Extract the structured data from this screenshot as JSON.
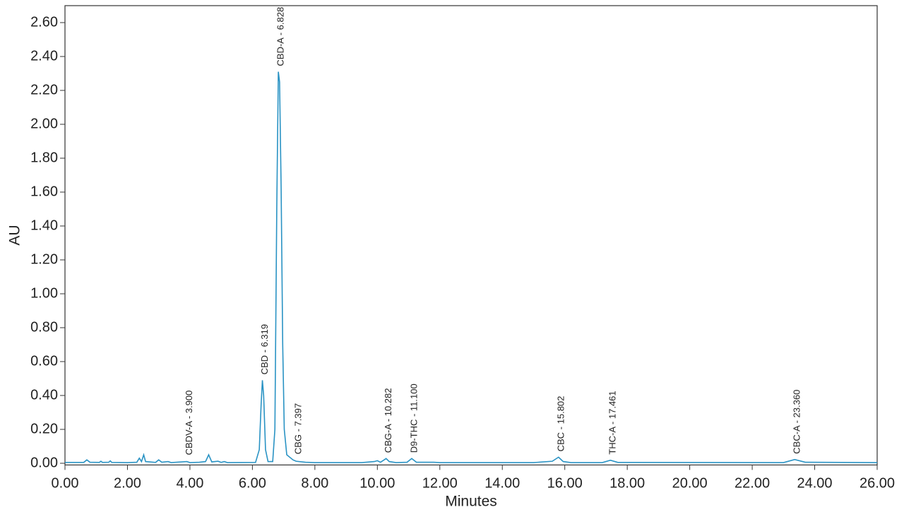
{
  "chart_data": {
    "type": "line",
    "xlabel": "Minutes",
    "ylabel": "AU",
    "color": "#2a93c4",
    "xlim": [
      0,
      26
    ],
    "ylim": [
      -0.01,
      2.7
    ],
    "xticks": [
      {
        "value": 0,
        "label": "0.00"
      },
      {
        "value": 2,
        "label": "2.00"
      },
      {
        "value": 4,
        "label": "4.00"
      },
      {
        "value": 6,
        "label": "6.00"
      },
      {
        "value": 8,
        "label": "8.00"
      },
      {
        "value": 10,
        "label": "10.00"
      },
      {
        "value": 12,
        "label": "12.00"
      },
      {
        "value": 14,
        "label": "14.00"
      },
      {
        "value": 16,
        "label": "16.00"
      },
      {
        "value": 18,
        "label": "18.00"
      },
      {
        "value": 20,
        "label": "20.00"
      },
      {
        "value": 22,
        "label": "22.00"
      },
      {
        "value": 24,
        "label": "24.00"
      },
      {
        "value": 26,
        "label": "26.00"
      }
    ],
    "yticks": [
      {
        "value": 0,
        "label": "0.00"
      },
      {
        "value": 0.2,
        "label": "0.20"
      },
      {
        "value": 0.4,
        "label": "0.40"
      },
      {
        "value": 0.6,
        "label": "0.60"
      },
      {
        "value": 0.8,
        "label": "0.80"
      },
      {
        "value": 1,
        "label": "1.00"
      },
      {
        "value": 1.2,
        "label": "1.20"
      },
      {
        "value": 1.4,
        "label": "1.40"
      },
      {
        "value": 1.6,
        "label": "1.60"
      },
      {
        "value": 1.8,
        "label": "1.80"
      },
      {
        "value": 2,
        "label": "2.00"
      },
      {
        "value": 2.2,
        "label": "2.20"
      },
      {
        "value": 2.4,
        "label": "2.40"
      },
      {
        "value": 2.6,
        "label": "2.60"
      }
    ],
    "x": [
      0,
      0.6,
      0.7,
      0.8,
      1.1,
      1.15,
      1.2,
      1.4,
      1.45,
      1.5,
      2.0,
      2.3,
      2.38,
      2.45,
      2.52,
      2.58,
      2.9,
      3.0,
      3.1,
      3.3,
      3.4,
      3.9,
      4.0,
      4.3,
      4.5,
      4.6,
      4.7,
      4.9,
      5.0,
      5.1,
      5.2,
      6.1,
      6.22,
      6.28,
      6.32,
      6.36,
      6.42,
      6.5,
      6.65,
      6.72,
      6.78,
      6.83,
      6.87,
      6.92,
      6.97,
      7.02,
      7.1,
      7.3,
      7.4,
      7.7,
      8.0,
      9.5,
      9.9,
      10.0,
      10.1,
      10.2,
      10.28,
      10.38,
      10.6,
      10.95,
      11.1,
      11.25,
      11.8,
      12,
      15.0,
      15.6,
      15.8,
      15.95,
      16.2,
      17.2,
      17.46,
      17.7,
      23.0,
      23.36,
      23.7,
      26
    ],
    "values": [
      0.005,
      0.005,
      0.02,
      0.006,
      0.005,
      0.012,
      0.005,
      0.006,
      0.014,
      0.005,
      0.004,
      0.006,
      0.03,
      0.01,
      0.05,
      0.01,
      0.005,
      0.02,
      0.006,
      0.01,
      0.004,
      0.01,
      0.004,
      0.006,
      0.01,
      0.05,
      0.008,
      0.012,
      0.005,
      0.01,
      0.004,
      0.005,
      0.08,
      0.35,
      0.49,
      0.4,
      0.08,
      0.01,
      0.01,
      0.2,
      1.5,
      2.31,
      2.25,
      1.62,
      0.7,
      0.2,
      0.05,
      0.02,
      0.012,
      0.006,
      0.004,
      0.004,
      0.01,
      0.015,
      0.006,
      0.018,
      0.028,
      0.01,
      0.004,
      0.006,
      0.028,
      0.006,
      0.006,
      0.004,
      0.004,
      0.012,
      0.036,
      0.01,
      0.004,
      0.004,
      0.018,
      0.005,
      0.004,
      0.022,
      0.006,
      0.004
    ],
    "peaks": [
      {
        "label": "CBDV-A - 3.900",
        "x": 3.9
      },
      {
        "label": "CBD - 6.319",
        "x": 6.319
      },
      {
        "label": "CBD-A - 6.828",
        "x": 6.828
      },
      {
        "label": "CBG - 7.397",
        "x": 7.397
      },
      {
        "label": "CBG-A - 10.282",
        "x": 10.282
      },
      {
        "label": "D9-THC - 11.100",
        "x": 11.1
      },
      {
        "label": "CBC - 15.802",
        "x": 15.802
      },
      {
        "label": "THC-A - 17.461",
        "x": 17.461
      },
      {
        "label": "CBC-A - 23.360",
        "x": 23.36
      }
    ]
  }
}
